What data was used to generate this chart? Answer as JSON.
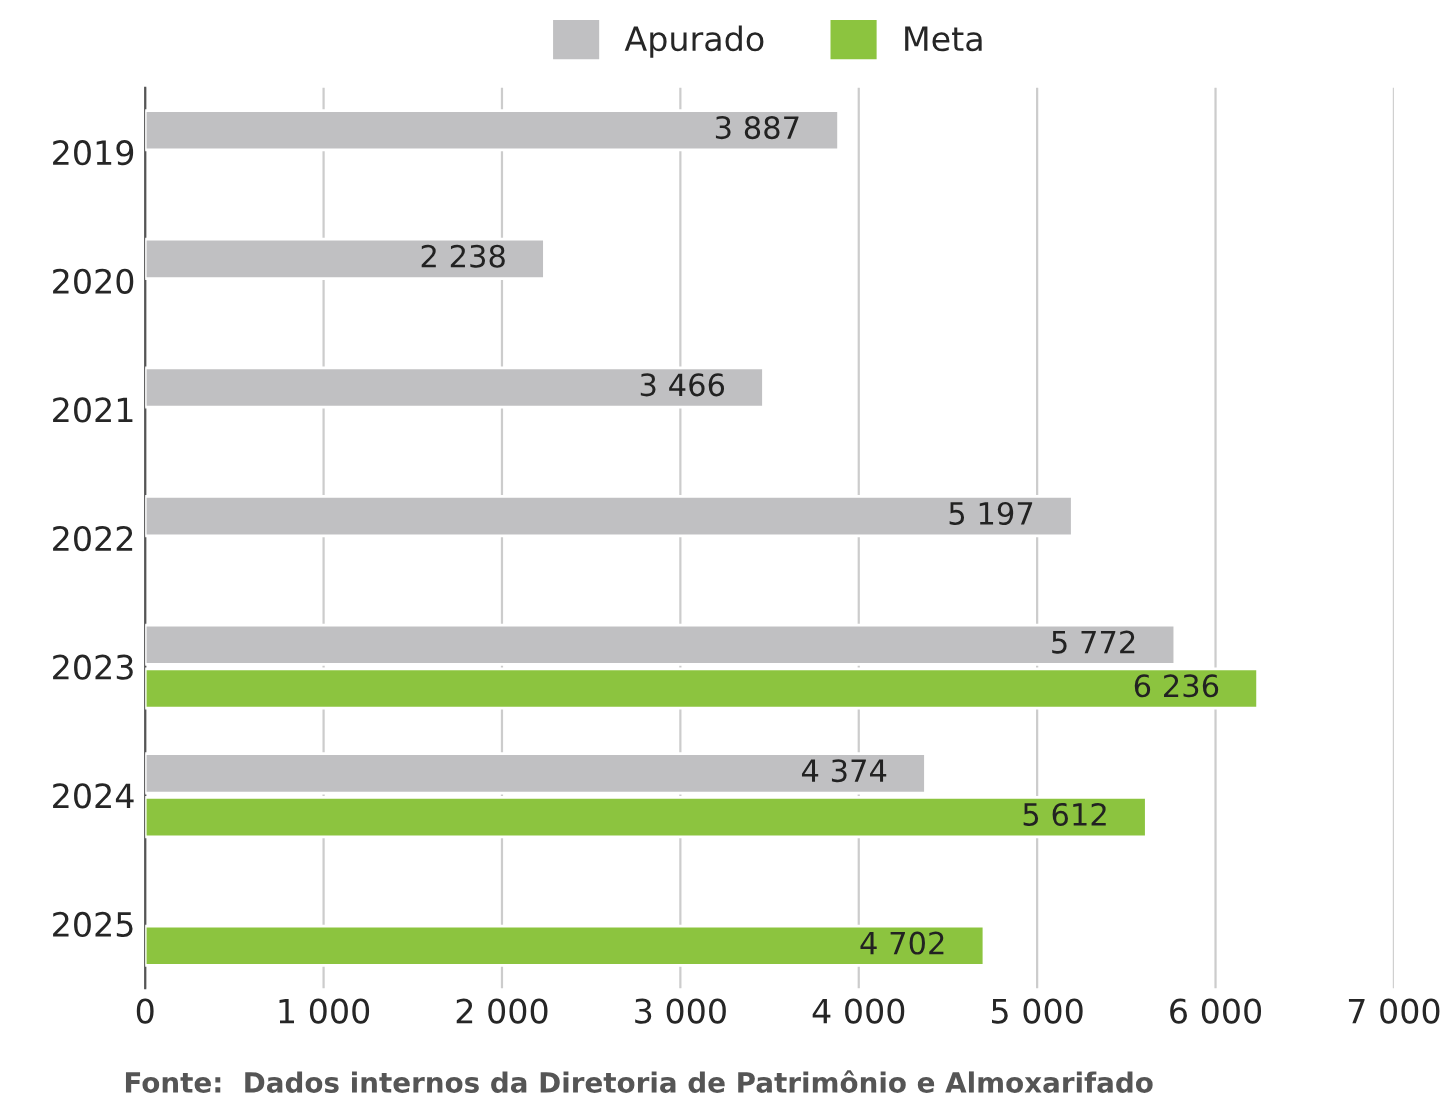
{
  "chart_data": {
    "type": "bar",
    "orientation": "horizontal",
    "categories": [
      "2019",
      "2020",
      "2021",
      "2022",
      "2023",
      "2024",
      "2025"
    ],
    "series": [
      {
        "name": "Apurado",
        "color": "#c0c0c2",
        "values": [
          3887,
          2238,
          3466,
          5197,
          5772,
          4374,
          null
        ],
        "value_labels": [
          "3 887",
          "2 238",
          "3 466",
          "5 197",
          "5 772",
          "4 374",
          null
        ]
      },
      {
        "name": "Meta",
        "color": "#8cc43f",
        "values": [
          null,
          null,
          null,
          null,
          6236,
          5612,
          4702
        ],
        "value_labels": [
          null,
          null,
          null,
          null,
          "6 236",
          "5 612",
          "4 702"
        ]
      }
    ],
    "xlim": [
      0,
      7000
    ],
    "xticks": [
      0,
      {
        "value": 1000,
        "label": "1 000"
      },
      {
        "value": 2000,
        "label": "2 000"
      },
      {
        "value": 3000,
        "label": "3 000"
      },
      {
        "value": 4000,
        "label": "4 000"
      },
      {
        "value": 5000,
        "label": "5 000"
      },
      {
        "value": 6000,
        "label": "6 000"
      },
      {
        "value": 7000,
        "label": "7 000"
      }
    ],
    "grid": "x",
    "legend": "top",
    "annotations": [
      "Fonte:  Dados internos da Diretoria de Patrimônio e Almoxarifado"
    ]
  }
}
